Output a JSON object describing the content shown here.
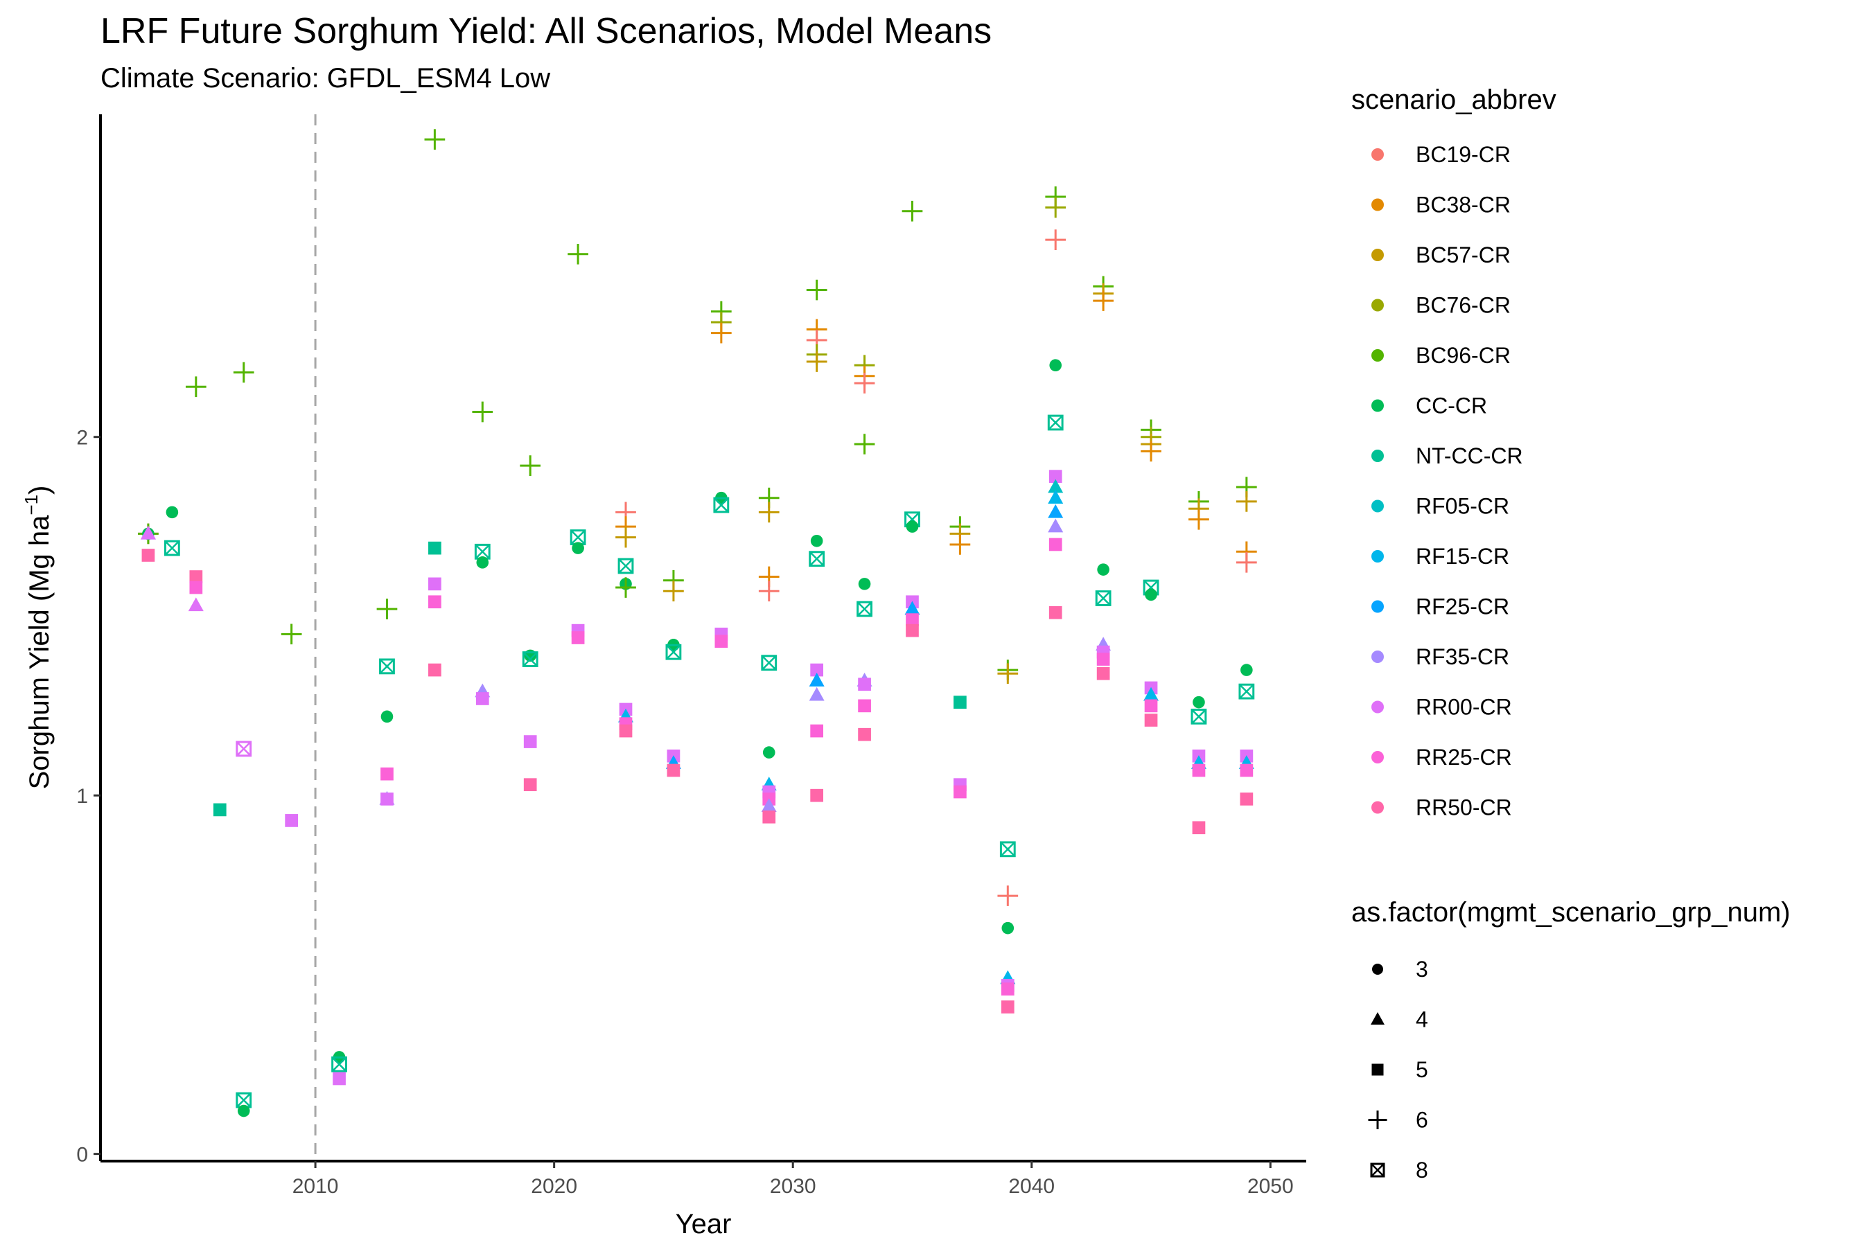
{
  "title": "LRF Future Sorghum Yield: All Scenarios, Model Means",
  "subtitle": "Climate Scenario: GFDL_ESM4 Low",
  "xlabel": "Year",
  "ylabel": "Sorghum Yield (Mg ha",
  "ylabel_sup": "−1",
  "ylabel_close": ")",
  "legend_color_title": "scenario_abbrev",
  "legend_shape_title": "as.factor(mgmt_scenario_grp_num)",
  "chart_data": {
    "type": "scatter",
    "xlim": [
      2001,
      2051.5
    ],
    "ylim": [
      -0.02,
      2.9
    ],
    "x_ticks": [
      2010,
      2020,
      2030,
      2040,
      2050
    ],
    "y_ticks": [
      0,
      1,
      2
    ],
    "reference_line": {
      "x": 2010,
      "style": "dashed",
      "color": "#a6a6a6"
    },
    "grid": false,
    "legend_position": "right",
    "scenarios": [
      {
        "name": "BC19-CR",
        "color": "#F8766D"
      },
      {
        "name": "BC38-CR",
        "color": "#E38900"
      },
      {
        "name": "BC57-CR",
        "color": "#C49A00"
      },
      {
        "name": "BC76-CR",
        "color": "#99A800"
      },
      {
        "name": "BC96-CR",
        "color": "#53B400"
      },
      {
        "name": "CC-CR",
        "color": "#00BC56"
      },
      {
        "name": "NT-CC-CR",
        "color": "#00C094"
      },
      {
        "name": "RF05-CR",
        "color": "#00BFC4"
      },
      {
        "name": "RF15-CR",
        "color": "#00B6EB"
      },
      {
        "name": "RF25-CR",
        "color": "#06A4FF"
      },
      {
        "name": "RF35-CR",
        "color": "#A58AFF"
      },
      {
        "name": "RR00-CR",
        "color": "#DF70F8"
      },
      {
        "name": "RR25-CR",
        "color": "#FB61D7"
      },
      {
        "name": "RR50-CR",
        "color": "#FF66A8"
      }
    ],
    "shapes": [
      {
        "name": "3",
        "shape": "circle"
      },
      {
        "name": "4",
        "shape": "triangle"
      },
      {
        "name": "5",
        "shape": "square"
      },
      {
        "name": "6",
        "shape": "plus"
      },
      {
        "name": "8",
        "shape": "boxcross"
      }
    ],
    "points": [
      {
        "x": 2003,
        "y": 1.73,
        "s": "BC19-CR",
        "g": "6"
      },
      {
        "x": 2003,
        "y": 1.73,
        "s": "BC96-CR",
        "g": "6"
      },
      {
        "x": 2003,
        "y": 1.73,
        "s": "CC-CR",
        "g": "3"
      },
      {
        "x": 2003,
        "y": 1.73,
        "s": "RF35-CR",
        "g": "4"
      },
      {
        "x": 2003,
        "y": 1.73,
        "s": "RR00-CR",
        "g": "4"
      },
      {
        "x": 2003,
        "y": 1.67,
        "s": "RR50-CR",
        "g": "5"
      },
      {
        "x": 2004,
        "y": 1.79,
        "s": "CC-CR",
        "g": "3"
      },
      {
        "x": 2004,
        "y": 1.69,
        "s": "NT-CC-CR",
        "g": "8"
      },
      {
        "x": 2005,
        "y": 2.14,
        "s": "BC96-CR",
        "g": "6"
      },
      {
        "x": 2005,
        "y": 1.61,
        "s": "RR50-CR",
        "g": "5"
      },
      {
        "x": 2005,
        "y": 1.58,
        "s": "RR25-CR",
        "g": "5"
      },
      {
        "x": 2005,
        "y": 1.53,
        "s": "RR00-CR",
        "g": "4"
      },
      {
        "x": 2006,
        "y": 0.96,
        "s": "NT-CC-CR",
        "g": "5"
      },
      {
        "x": 2007,
        "y": 2.18,
        "s": "BC96-CR",
        "g": "6"
      },
      {
        "x": 2007,
        "y": 1.13,
        "s": "RR00-CR",
        "g": "8"
      },
      {
        "x": 2007,
        "y": 0.15,
        "s": "NT-CC-CR",
        "g": "8"
      },
      {
        "x": 2007,
        "y": 0.12,
        "s": "CC-CR",
        "g": "3"
      },
      {
        "x": 2009,
        "y": 1.45,
        "s": "BC96-CR",
        "g": "6"
      },
      {
        "x": 2009,
        "y": 0.93,
        "s": "RR00-CR",
        "g": "5"
      },
      {
        "x": 2011,
        "y": 0.27,
        "s": "CC-CR",
        "g": "3"
      },
      {
        "x": 2011,
        "y": 0.25,
        "s": "NT-CC-CR",
        "g": "8"
      },
      {
        "x": 2011,
        "y": 0.21,
        "s": "RR00-CR",
        "g": "5"
      },
      {
        "x": 2013,
        "y": 1.52,
        "s": "BC96-CR",
        "g": "6"
      },
      {
        "x": 2013,
        "y": 1.36,
        "s": "NT-CC-CR",
        "g": "8"
      },
      {
        "x": 2013,
        "y": 1.22,
        "s": "CC-CR",
        "g": "3"
      },
      {
        "x": 2013,
        "y": 1.06,
        "s": "RR25-CR",
        "g": "5"
      },
      {
        "x": 2013,
        "y": 0.99,
        "s": "RF35-CR",
        "g": "4"
      },
      {
        "x": 2013,
        "y": 0.99,
        "s": "RR00-CR",
        "g": "5"
      },
      {
        "x": 2015,
        "y": 2.83,
        "s": "BC96-CR",
        "g": "6"
      },
      {
        "x": 2015,
        "y": 1.69,
        "s": "NT-CC-CR",
        "g": "5"
      },
      {
        "x": 2015,
        "y": 1.59,
        "s": "RR00-CR",
        "g": "5"
      },
      {
        "x": 2015,
        "y": 1.54,
        "s": "RR25-CR",
        "g": "5"
      },
      {
        "x": 2015,
        "y": 1.35,
        "s": "RR50-CR",
        "g": "5"
      },
      {
        "x": 2017,
        "y": 2.07,
        "s": "BC96-CR",
        "g": "6"
      },
      {
        "x": 2017,
        "y": 1.68,
        "s": "NT-CC-CR",
        "g": "8"
      },
      {
        "x": 2017,
        "y": 1.65,
        "s": "CC-CR",
        "g": "3"
      },
      {
        "x": 2017,
        "y": 1.29,
        "s": "RF35-CR",
        "g": "4"
      },
      {
        "x": 2017,
        "y": 1.27,
        "s": "RR00-CR",
        "g": "5"
      },
      {
        "x": 2019,
        "y": 1.92,
        "s": "BC96-CR",
        "g": "6"
      },
      {
        "x": 2019,
        "y": 1.39,
        "s": "CC-CR",
        "g": "3"
      },
      {
        "x": 2019,
        "y": 1.38,
        "s": "NT-CC-CR",
        "g": "8"
      },
      {
        "x": 2019,
        "y": 1.15,
        "s": "RR00-CR",
        "g": "5"
      },
      {
        "x": 2019,
        "y": 1.03,
        "s": "RR50-CR",
        "g": "5"
      },
      {
        "x": 2021,
        "y": 2.51,
        "s": "BC96-CR",
        "g": "6"
      },
      {
        "x": 2021,
        "y": 1.72,
        "s": "NT-CC-CR",
        "g": "8"
      },
      {
        "x": 2021,
        "y": 1.69,
        "s": "CC-CR",
        "g": "3"
      },
      {
        "x": 2021,
        "y": 1.46,
        "s": "RR00-CR",
        "g": "5"
      },
      {
        "x": 2021,
        "y": 1.44,
        "s": "RR25-CR",
        "g": "5"
      },
      {
        "x": 2023,
        "y": 1.79,
        "s": "BC19-CR",
        "g": "6"
      },
      {
        "x": 2023,
        "y": 1.75,
        "s": "BC38-CR",
        "g": "6"
      },
      {
        "x": 2023,
        "y": 1.72,
        "s": "BC57-CR",
        "g": "6"
      },
      {
        "x": 2023,
        "y": 1.64,
        "s": "NT-CC-CR",
        "g": "8"
      },
      {
        "x": 2023,
        "y": 1.59,
        "s": "CC-CR",
        "g": "3"
      },
      {
        "x": 2023,
        "y": 1.58,
        "s": "BC96-CR",
        "g": "6"
      },
      {
        "x": 2023,
        "y": 1.24,
        "s": "RR00-CR",
        "g": "5"
      },
      {
        "x": 2023,
        "y": 1.22,
        "s": "RF15-CR",
        "g": "4"
      },
      {
        "x": 2023,
        "y": 1.2,
        "s": "RR25-CR",
        "g": "5"
      },
      {
        "x": 2023,
        "y": 1.18,
        "s": "RR50-CR",
        "g": "5"
      },
      {
        "x": 2025,
        "y": 1.6,
        "s": "BC96-CR",
        "g": "6"
      },
      {
        "x": 2025,
        "y": 1.57,
        "s": "BC57-CR",
        "g": "6"
      },
      {
        "x": 2025,
        "y": 1.42,
        "s": "CC-CR",
        "g": "3"
      },
      {
        "x": 2025,
        "y": 1.4,
        "s": "NT-CC-CR",
        "g": "8"
      },
      {
        "x": 2025,
        "y": 1.11,
        "s": "RR00-CR",
        "g": "5"
      },
      {
        "x": 2025,
        "y": 1.09,
        "s": "RF25-CR",
        "g": "4"
      },
      {
        "x": 2025,
        "y": 1.07,
        "s": "RR50-CR",
        "g": "5"
      },
      {
        "x": 2027,
        "y": 2.35,
        "s": "BC96-CR",
        "g": "6"
      },
      {
        "x": 2027,
        "y": 2.32,
        "s": "BC76-CR",
        "g": "6"
      },
      {
        "x": 2027,
        "y": 2.29,
        "s": "BC38-CR",
        "g": "6"
      },
      {
        "x": 2027,
        "y": 1.83,
        "s": "CC-CR",
        "g": "3"
      },
      {
        "x": 2027,
        "y": 1.81,
        "s": "NT-CC-CR",
        "g": "8"
      },
      {
        "x": 2027,
        "y": 1.45,
        "s": "RR00-CR",
        "g": "5"
      },
      {
        "x": 2027,
        "y": 1.43,
        "s": "RR25-CR",
        "g": "5"
      },
      {
        "x": 2029,
        "y": 1.83,
        "s": "BC96-CR",
        "g": "6"
      },
      {
        "x": 2029,
        "y": 1.79,
        "s": "BC57-CR",
        "g": "6"
      },
      {
        "x": 2029,
        "y": 1.61,
        "s": "BC38-CR",
        "g": "6"
      },
      {
        "x": 2029,
        "y": 1.57,
        "s": "BC19-CR",
        "g": "6"
      },
      {
        "x": 2029,
        "y": 1.37,
        "s": "NT-CC-CR",
        "g": "8"
      },
      {
        "x": 2029,
        "y": 1.12,
        "s": "CC-CR",
        "g": "3"
      },
      {
        "x": 2029,
        "y": 1.03,
        "s": "RF15-CR",
        "g": "4"
      },
      {
        "x": 2029,
        "y": 1.01,
        "s": "RR00-CR",
        "g": "5"
      },
      {
        "x": 2029,
        "y": 0.99,
        "s": "RR25-CR",
        "g": "5"
      },
      {
        "x": 2029,
        "y": 0.97,
        "s": "RF35-CR",
        "g": "4"
      },
      {
        "x": 2029,
        "y": 0.94,
        "s": "RR50-CR",
        "g": "5"
      },
      {
        "x": 2031,
        "y": 2.41,
        "s": "BC96-CR",
        "g": "6"
      },
      {
        "x": 2031,
        "y": 2.3,
        "s": "BC38-CR",
        "g": "6"
      },
      {
        "x": 2031,
        "y": 2.27,
        "s": "BC19-CR",
        "g": "6"
      },
      {
        "x": 2031,
        "y": 2.23,
        "s": "BC76-CR",
        "g": "6"
      },
      {
        "x": 2031,
        "y": 2.21,
        "s": "BC57-CR",
        "g": "6"
      },
      {
        "x": 2031,
        "y": 1.71,
        "s": "CC-CR",
        "g": "3"
      },
      {
        "x": 2031,
        "y": 1.66,
        "s": "NT-CC-CR",
        "g": "8"
      },
      {
        "x": 2031,
        "y": 1.35,
        "s": "RR00-CR",
        "g": "5"
      },
      {
        "x": 2031,
        "y": 1.32,
        "s": "RF25-CR",
        "g": "4"
      },
      {
        "x": 2031,
        "y": 1.28,
        "s": "RF35-CR",
        "g": "4"
      },
      {
        "x": 2031,
        "y": 1.18,
        "s": "RR25-CR",
        "g": "5"
      },
      {
        "x": 2031,
        "y": 1.0,
        "s": "RR50-CR",
        "g": "5"
      },
      {
        "x": 2033,
        "y": 2.2,
        "s": "BC76-CR",
        "g": "6"
      },
      {
        "x": 2033,
        "y": 2.17,
        "s": "BC38-CR",
        "g": "6"
      },
      {
        "x": 2033,
        "y": 2.15,
        "s": "BC19-CR",
        "g": "6"
      },
      {
        "x": 2033,
        "y": 1.98,
        "s": "BC96-CR",
        "g": "6"
      },
      {
        "x": 2033,
        "y": 1.59,
        "s": "CC-CR",
        "g": "3"
      },
      {
        "x": 2033,
        "y": 1.52,
        "s": "NT-CC-CR",
        "g": "8"
      },
      {
        "x": 2033,
        "y": 1.32,
        "s": "RF35-CR",
        "g": "4"
      },
      {
        "x": 2033,
        "y": 1.31,
        "s": "RR00-CR",
        "g": "5"
      },
      {
        "x": 2033,
        "y": 1.25,
        "s": "RR25-CR",
        "g": "5"
      },
      {
        "x": 2033,
        "y": 1.17,
        "s": "RR50-CR",
        "g": "5"
      },
      {
        "x": 2035,
        "y": 2.63,
        "s": "BC96-CR",
        "g": "6"
      },
      {
        "x": 2035,
        "y": 1.77,
        "s": "NT-CC-CR",
        "g": "8"
      },
      {
        "x": 2035,
        "y": 1.75,
        "s": "CC-CR",
        "g": "3"
      },
      {
        "x": 2035,
        "y": 1.54,
        "s": "RR00-CR",
        "g": "5"
      },
      {
        "x": 2035,
        "y": 1.52,
        "s": "RF25-CR",
        "g": "4"
      },
      {
        "x": 2035,
        "y": 1.49,
        "s": "RR25-CR",
        "g": "5"
      },
      {
        "x": 2035,
        "y": 1.46,
        "s": "RR50-CR",
        "g": "5"
      },
      {
        "x": 2037,
        "y": 1.75,
        "s": "BC96-CR",
        "g": "6"
      },
      {
        "x": 2037,
        "y": 1.73,
        "s": "BC57-CR",
        "g": "6"
      },
      {
        "x": 2037,
        "y": 1.7,
        "s": "BC38-CR",
        "g": "6"
      },
      {
        "x": 2037,
        "y": 1.26,
        "s": "NT-CC-CR",
        "g": "5"
      },
      {
        "x": 2037,
        "y": 1.03,
        "s": "RR00-CR",
        "g": "5"
      },
      {
        "x": 2037,
        "y": 1.01,
        "s": "RR25-CR",
        "g": "5"
      },
      {
        "x": 2039,
        "y": 1.35,
        "s": "BC96-CR",
        "g": "6"
      },
      {
        "x": 2039,
        "y": 1.34,
        "s": "BC57-CR",
        "g": "6"
      },
      {
        "x": 2039,
        "y": 0.85,
        "s": "NT-CC-CR",
        "g": "8"
      },
      {
        "x": 2039,
        "y": 0.72,
        "s": "BC19-CR",
        "g": "6"
      },
      {
        "x": 2039,
        "y": 0.63,
        "s": "CC-CR",
        "g": "3"
      },
      {
        "x": 2039,
        "y": 0.49,
        "s": "RF15-CR",
        "g": "4"
      },
      {
        "x": 2039,
        "y": 0.47,
        "s": "RR00-CR",
        "g": "5"
      },
      {
        "x": 2039,
        "y": 0.46,
        "s": "RR25-CR",
        "g": "5"
      },
      {
        "x": 2039,
        "y": 0.41,
        "s": "RR50-CR",
        "g": "5"
      },
      {
        "x": 2041,
        "y": 2.67,
        "s": "BC96-CR",
        "g": "6"
      },
      {
        "x": 2041,
        "y": 2.64,
        "s": "BC76-CR",
        "g": "6"
      },
      {
        "x": 2041,
        "y": 2.55,
        "s": "BC19-CR",
        "g": "6"
      },
      {
        "x": 2041,
        "y": 2.2,
        "s": "CC-CR",
        "g": "3"
      },
      {
        "x": 2041,
        "y": 2.04,
        "s": "NT-CC-CR",
        "g": "8"
      },
      {
        "x": 2041,
        "y": 1.89,
        "s": "RR00-CR",
        "g": "5"
      },
      {
        "x": 2041,
        "y": 1.86,
        "s": "RF05-CR",
        "g": "4"
      },
      {
        "x": 2041,
        "y": 1.83,
        "s": "RF15-CR",
        "g": "4"
      },
      {
        "x": 2041,
        "y": 1.79,
        "s": "RF25-CR",
        "g": "4"
      },
      {
        "x": 2041,
        "y": 1.75,
        "s": "RF35-CR",
        "g": "4"
      },
      {
        "x": 2041,
        "y": 1.7,
        "s": "RR25-CR",
        "g": "5"
      },
      {
        "x": 2041,
        "y": 1.51,
        "s": "RR50-CR",
        "g": "5"
      },
      {
        "x": 2043,
        "y": 2.42,
        "s": "BC96-CR",
        "g": "6"
      },
      {
        "x": 2043,
        "y": 2.4,
        "s": "BC57-CR",
        "g": "6"
      },
      {
        "x": 2043,
        "y": 2.38,
        "s": "BC38-CR",
        "g": "6"
      },
      {
        "x": 2043,
        "y": 1.63,
        "s": "CC-CR",
        "g": "3"
      },
      {
        "x": 2043,
        "y": 1.55,
        "s": "NT-CC-CR",
        "g": "8"
      },
      {
        "x": 2043,
        "y": 1.42,
        "s": "RF35-CR",
        "g": "4"
      },
      {
        "x": 2043,
        "y": 1.4,
        "s": "RR00-CR",
        "g": "5"
      },
      {
        "x": 2043,
        "y": 1.38,
        "s": "RR25-CR",
        "g": "5"
      },
      {
        "x": 2043,
        "y": 1.34,
        "s": "RR50-CR",
        "g": "5"
      },
      {
        "x": 2045,
        "y": 2.02,
        "s": "BC96-CR",
        "g": "6"
      },
      {
        "x": 2045,
        "y": 2.0,
        "s": "BC76-CR",
        "g": "6"
      },
      {
        "x": 2045,
        "y": 1.98,
        "s": "BC57-CR",
        "g": "6"
      },
      {
        "x": 2045,
        "y": 1.96,
        "s": "BC38-CR",
        "g": "6"
      },
      {
        "x": 2045,
        "y": 1.58,
        "s": "NT-CC-CR",
        "g": "8"
      },
      {
        "x": 2045,
        "y": 1.56,
        "s": "CC-CR",
        "g": "3"
      },
      {
        "x": 2045,
        "y": 1.3,
        "s": "RR00-CR",
        "g": "5"
      },
      {
        "x": 2045,
        "y": 1.28,
        "s": "RF15-CR",
        "g": "4"
      },
      {
        "x": 2045,
        "y": 1.25,
        "s": "RR25-CR",
        "g": "5"
      },
      {
        "x": 2045,
        "y": 1.21,
        "s": "RR50-CR",
        "g": "5"
      },
      {
        "x": 2047,
        "y": 1.82,
        "s": "BC96-CR",
        "g": "6"
      },
      {
        "x": 2047,
        "y": 1.8,
        "s": "BC57-CR",
        "g": "6"
      },
      {
        "x": 2047,
        "y": 1.77,
        "s": "BC38-CR",
        "g": "6"
      },
      {
        "x": 2047,
        "y": 1.26,
        "s": "CC-CR",
        "g": "3"
      },
      {
        "x": 2047,
        "y": 1.22,
        "s": "NT-CC-CR",
        "g": "8"
      },
      {
        "x": 2047,
        "y": 1.11,
        "s": "RR00-CR",
        "g": "5"
      },
      {
        "x": 2047,
        "y": 1.09,
        "s": "RF15-CR",
        "g": "4"
      },
      {
        "x": 2047,
        "y": 1.07,
        "s": "RR25-CR",
        "g": "5"
      },
      {
        "x": 2047,
        "y": 0.91,
        "s": "RR50-CR",
        "g": "5"
      },
      {
        "x": 2049,
        "y": 1.86,
        "s": "BC96-CR",
        "g": "6"
      },
      {
        "x": 2049,
        "y": 1.82,
        "s": "BC57-CR",
        "g": "6"
      },
      {
        "x": 2049,
        "y": 1.68,
        "s": "BC38-CR",
        "g": "6"
      },
      {
        "x": 2049,
        "y": 1.65,
        "s": "BC19-CR",
        "g": "6"
      },
      {
        "x": 2049,
        "y": 1.35,
        "s": "CC-CR",
        "g": "3"
      },
      {
        "x": 2049,
        "y": 1.29,
        "s": "NT-CC-CR",
        "g": "8"
      },
      {
        "x": 2049,
        "y": 1.11,
        "s": "RR00-CR",
        "g": "5"
      },
      {
        "x": 2049,
        "y": 1.09,
        "s": "RF15-CR",
        "g": "4"
      },
      {
        "x": 2049,
        "y": 1.07,
        "s": "RR25-CR",
        "g": "5"
      },
      {
        "x": 2049,
        "y": 0.99,
        "s": "RR50-CR",
        "g": "5"
      }
    ]
  }
}
